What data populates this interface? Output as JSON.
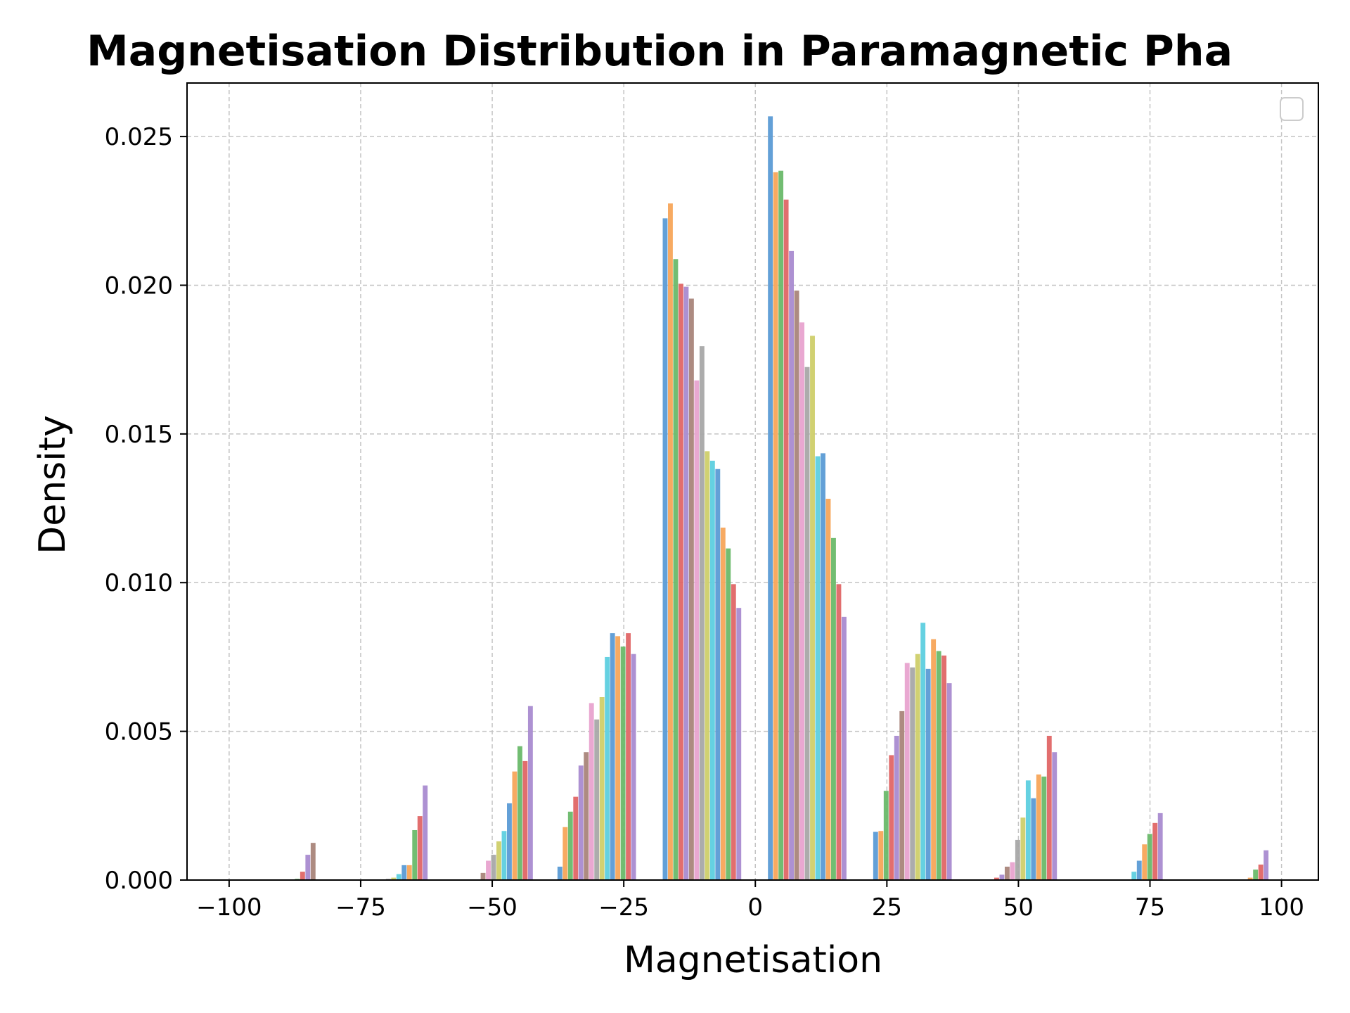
{
  "chart_data": {
    "type": "bar",
    "title": "Magnetisation Distribution in Paramagnetic Pha",
    "xlabel": "Magnetisation",
    "ylabel": "Density",
    "xlim": [
      -108,
      107
    ],
    "ylim": [
      0,
      0.0268
    ],
    "xticks": [
      {
        "value": -100,
        "label": "−100"
      },
      {
        "value": -75,
        "label": "−75"
      },
      {
        "value": -50,
        "label": "−50"
      },
      {
        "value": -25,
        "label": "−25"
      },
      {
        "value": 0,
        "label": "0"
      },
      {
        "value": 25,
        "label": "25"
      },
      {
        "value": 50,
        "label": "50"
      },
      {
        "value": 75,
        "label": "75"
      },
      {
        "value": 100,
        "label": "100"
      }
    ],
    "yticks": [
      {
        "value": 0,
        "label": "0.000"
      },
      {
        "value": 0.005,
        "label": "0.005"
      },
      {
        "value": 0.01,
        "label": "0.010"
      },
      {
        "value": 0.015,
        "label": "0.015"
      },
      {
        "value": 0.02,
        "label": "0.020"
      },
      {
        "value": 0.025,
        "label": "0.025"
      }
    ],
    "grid": true,
    "legend": {
      "placement": "top-right",
      "entries": []
    },
    "bar_width": 1.0,
    "colors": [
      "#5b9bd5",
      "#f7a55a",
      "#6ab96a",
      "#e06666",
      "#a98bd0",
      "#a9857a",
      "#e8a3cf",
      "#a8a8a8",
      "#cfcf6a",
      "#5dcfdf"
    ],
    "groups": [
      {
        "start_x": -88.5,
        "color_start": 1,
        "values": [
          2e-05,
          4e-05,
          0.00028,
          0.00085,
          0.00125
        ]
      },
      {
        "start_x": -71.2,
        "color_start": 6,
        "values": [
          1e-05,
          4e-05,
          8e-05,
          0.0002,
          0.0005,
          0.0005,
          0.00168,
          0.00215,
          0.00318
        ]
      },
      {
        "start_x": -53.2,
        "color_start": 4,
        "values": [
          1e-05,
          0.00024,
          0.00065,
          0.00085,
          0.0013,
          0.00165,
          0.00258,
          0.00365,
          0.0045,
          0.004,
          0.00585
        ]
      },
      {
        "start_x": -37.6,
        "color_start": 0,
        "values": [
          0.00045,
          0.00178,
          0.0023,
          0.0028,
          0.00385,
          0.0043,
          0.00595,
          0.0054,
          0.00615,
          0.0075,
          0.0083,
          0.0082,
          0.00785,
          0.0083,
          0.0076
        ]
      },
      {
        "start_x": -17.6,
        "color_start": 0,
        "values": [
          0.02225,
          0.02275,
          0.02088,
          0.02005,
          0.01995,
          0.01955,
          0.0168,
          0.01795,
          0.01442,
          0.0141,
          0.01382,
          0.01185,
          0.01115,
          0.00995,
          0.00915
        ]
      },
      {
        "start_x": 2.4,
        "color_start": 0,
        "values": [
          0.02568,
          0.0238,
          0.02385,
          0.02288,
          0.02115,
          0.01982,
          0.01875,
          0.01725,
          0.0183,
          0.01425,
          0.01435,
          0.01282,
          0.0115,
          0.00995,
          0.00885
        ]
      },
      {
        "start_x": 22.4,
        "color_start": 0,
        "values": [
          0.00162,
          0.00165,
          0.003,
          0.0042,
          0.00485,
          0.00568,
          0.0073,
          0.00715,
          0.0076,
          0.00865,
          0.0071,
          0.0081,
          0.0077,
          0.00755,
          0.00662
        ]
      },
      {
        "start_x": 45.4,
        "color_start": 3,
        "values": [
          8e-05,
          0.00018,
          0.00045,
          0.0006,
          0.00135,
          0.0021,
          0.00335,
          0.00275,
          0.00355,
          0.00348,
          0.00485,
          0.0043
        ]
      },
      {
        "start_x": 70.5,
        "color_start": 8,
        "values": [
          2e-05,
          0.00028,
          0.00065,
          0.0012,
          0.00155,
          0.00192,
          0.00225
        ]
      },
      {
        "start_x": 93.6,
        "color_start": 1,
        "values": [
          8e-05,
          0.00035,
          0.00052,
          0.001
        ]
      }
    ]
  }
}
